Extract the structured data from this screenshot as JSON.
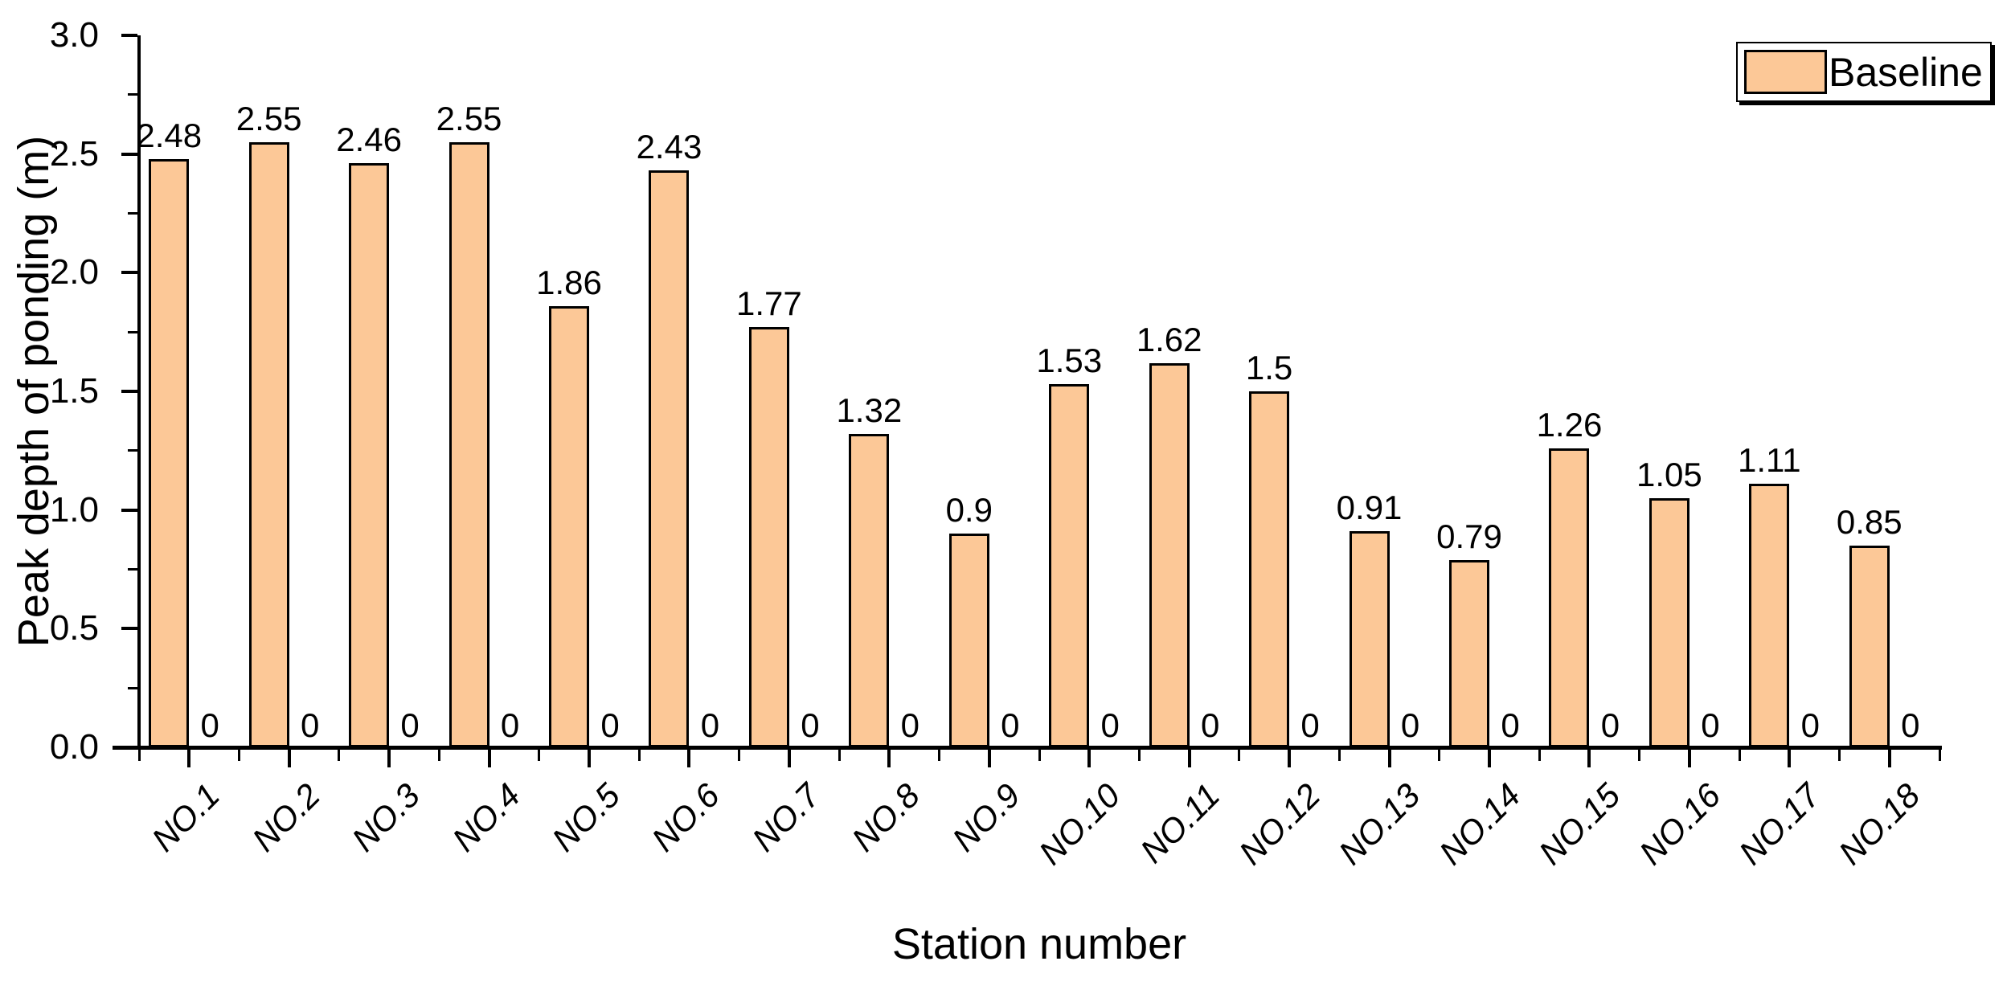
{
  "chart_data": {
    "type": "bar",
    "title": "",
    "xlabel": "Station number",
    "ylabel": "Peak depth of ponding (m)",
    "categories": [
      "NO.1",
      "NO.2",
      "NO.3",
      "NO.4",
      "NO.5",
      "NO.6",
      "NO.7",
      "NO.8",
      "NO.9",
      "NO.10",
      "NO.11",
      "NO.12",
      "NO.13",
      "NO.14",
      "NO.15",
      "NO.16",
      "NO.17",
      "NO.18"
    ],
    "series": [
      {
        "name": "Baseline",
        "in_legend": true,
        "color": "#FCC897",
        "border_color": "#000000",
        "values": [
          2.48,
          2.55,
          2.46,
          2.55,
          1.86,
          2.43,
          1.77,
          1.32,
          0.9,
          1.53,
          1.62,
          1.5,
          0.91,
          0.79,
          1.26,
          1.05,
          1.11,
          0.85
        ],
        "data_labels": [
          "2.48",
          "2.55",
          "2.46",
          "2.55",
          "1.86",
          "2.43",
          "1.77",
          "1.32",
          "0.9",
          "1.53",
          "1.62",
          "1.5",
          "0.91",
          "0.79",
          "1.26",
          "1.05",
          "1.11",
          "0.85"
        ]
      },
      {
        "name": "",
        "in_legend": false,
        "values": [
          0,
          0,
          0,
          0,
          0,
          0,
          0,
          0,
          0,
          0,
          0,
          0,
          0,
          0,
          0,
          0,
          0,
          0
        ],
        "data_labels": [
          "0",
          "0",
          "0",
          "0",
          "0",
          "0",
          "0",
          "0",
          "0",
          "0",
          "0",
          "0",
          "0",
          "0",
          "0",
          "0",
          "0",
          "0"
        ]
      }
    ],
    "ylim": [
      0.0,
      3.0
    ],
    "y_major_ticks": [
      "0.0",
      "0.5",
      "1.0",
      "1.5",
      "2.0",
      "2.5",
      "3.0"
    ],
    "y_minor_step": 0.25,
    "grid": false,
    "legend": {
      "position": "top-right",
      "entries": [
        "Baseline"
      ]
    }
  },
  "colors": {
    "background": "#FFFFFF",
    "bar_fill": "#FCC897",
    "bar_border": "#000000",
    "axis": "#000000",
    "text": "#000000"
  }
}
